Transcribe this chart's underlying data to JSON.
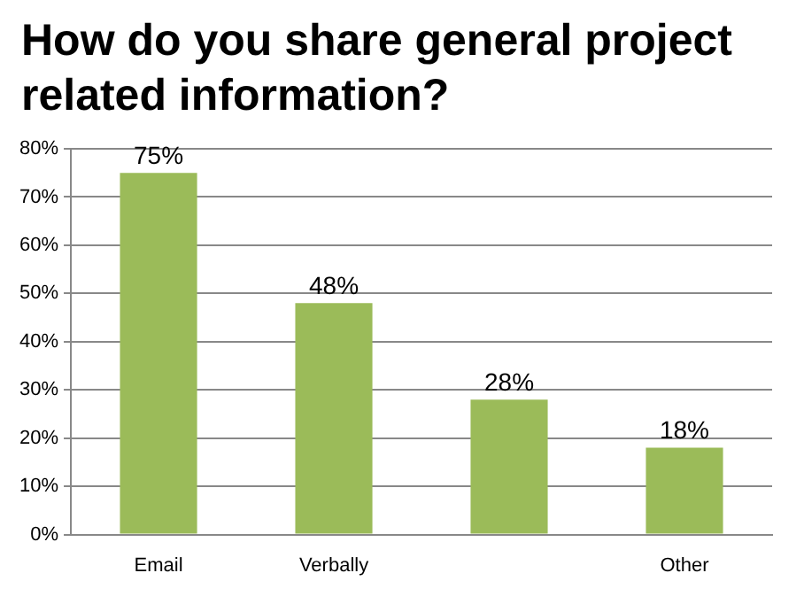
{
  "chart_data": {
    "type": "bar",
    "title": "How do you share general project related information?",
    "categories": [
      "Email",
      "Verbally",
      null,
      "Other"
    ],
    "values": [
      75,
      48,
      28,
      18
    ],
    "value_labels": [
      "75%",
      "48%",
      "28%",
      "18%"
    ],
    "color": "#9bbb59",
    "ylim": [
      0,
      80
    ],
    "yticks": [
      {
        "value": 0,
        "label": "0%"
      },
      {
        "value": 10,
        "label": "10%"
      },
      {
        "value": 20,
        "label": "20%"
      },
      {
        "value": 30,
        "label": "30%"
      },
      {
        "value": 40,
        "label": "40%"
      },
      {
        "value": 50,
        "label": "50%"
      },
      {
        "value": 60,
        "label": "60%"
      },
      {
        "value": 70,
        "label": "70%"
      },
      {
        "value": 80,
        "label": "80%"
      }
    ],
    "grid": true,
    "legend": false
  }
}
